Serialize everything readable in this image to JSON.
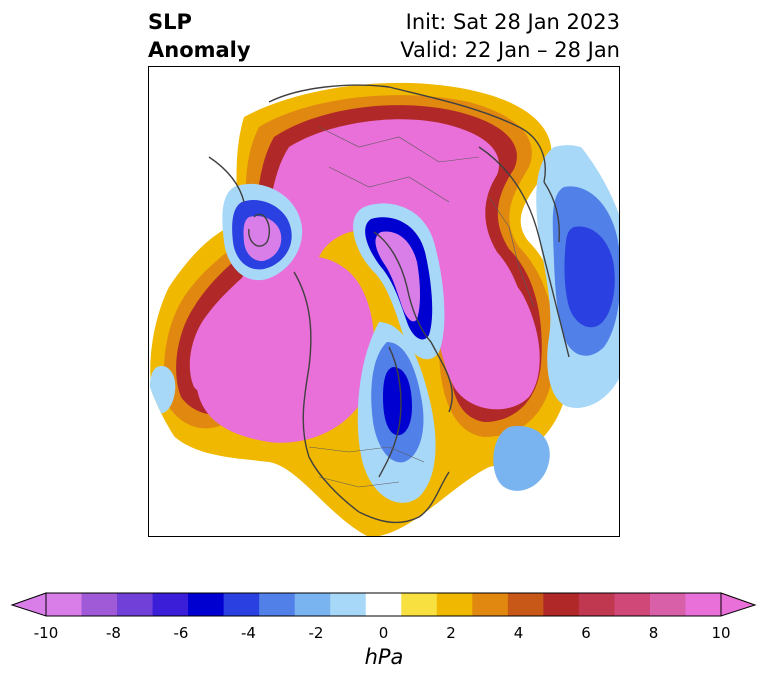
{
  "title": {
    "field_line1": "SLP",
    "field_line2": "Anomaly",
    "init": "Init: Sat 28 Jan 2023",
    "valid": "Valid: 22 Jan – 28 Jan"
  },
  "colorbar": {
    "unit": "hPa",
    "ticks": [
      "-10",
      "-8",
      "-6",
      "-4",
      "-2",
      "0",
      "2",
      "4",
      "6",
      "8",
      "10"
    ],
    "min": -10,
    "max": 10,
    "colors": [
      "#d97ee8",
      "#a05ad8",
      "#7040d8",
      "#3a1ed8",
      "#0000d0",
      "#2a40e0",
      "#5080e8",
      "#7ab4f0",
      "#a8d8f8",
      "#ffffff",
      "#f8e040",
      "#f0b800",
      "#e08810",
      "#c85818",
      "#b02828",
      "#c03850",
      "#d04878",
      "#d860a8",
      "#e870d8"
    ]
  },
  "map": {
    "projection": "north polar stereographic",
    "colors": {
      "strong_high": "#e870d8",
      "high_edge": "#d04878",
      "red": "#b02828",
      "orange": "#c85818",
      "amber": "#e08810",
      "yellow": "#f0b800",
      "pale_yellow": "#f8e040",
      "light_blue": "#a8d8f8",
      "mid_blue": "#7ab4f0",
      "blue": "#5080e8",
      "deep_blue": "#2a40e0",
      "navy": "#0000d0",
      "low_core": "#d97ee8"
    }
  }
}
